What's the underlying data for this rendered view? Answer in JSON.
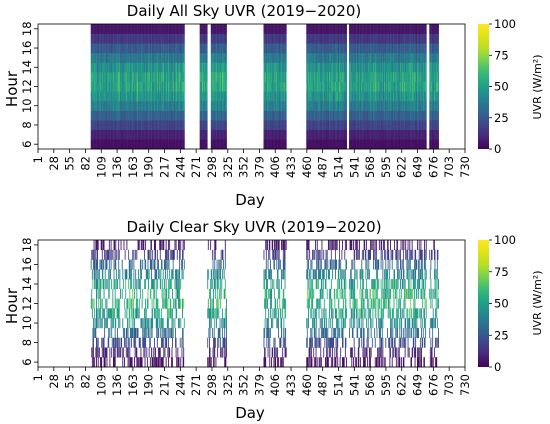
{
  "chart_data": [
    {
      "type": "heatmap",
      "title": "Daily All Sky UVR (2019−2020)",
      "xlabel": "Day",
      "ylabel": "Hour",
      "x_tick_labels": [
        "1",
        "28",
        "55",
        "82",
        "109",
        "136",
        "163",
        "190",
        "217",
        "244",
        "271",
        "298",
        "325",
        "352",
        "379",
        "406",
        "433",
        "460",
        "487",
        "514",
        "541",
        "568",
        "595",
        "622",
        "649",
        "676",
        "703",
        "730"
      ],
      "y_tick_labels": [
        "6",
        "8",
        "10",
        "12",
        "14",
        "16",
        "18"
      ],
      "xlim": [
        1,
        730
      ],
      "hours": [
        6,
        18
      ],
      "colorbar": {
        "label": "UVR (W/m²)",
        "ticks": [
          "0",
          "25",
          "50",
          "75",
          "100"
        ],
        "min": 0,
        "max": 100,
        "colormap": "viridis"
      },
      "data_segments": [
        [
          91,
          250
        ],
        [
          277,
          289
        ],
        [
          296,
          322
        ],
        [
          386,
          424
        ],
        [
          459,
          527
        ],
        [
          532,
          663
        ],
        [
          669,
          684
        ]
      ],
      "hourly_profile": [
        {
          "hour": 6,
          "uvr": 4
        },
        {
          "hour": 7,
          "uvr": 9
        },
        {
          "hour": 8,
          "uvr": 20
        },
        {
          "hour": 9,
          "uvr": 30
        },
        {
          "hour": 10,
          "uvr": 42
        },
        {
          "hour": 11,
          "uvr": 50
        },
        {
          "hour": 12,
          "uvr": 56
        },
        {
          "hour": 13,
          "uvr": 56
        },
        {
          "hour": 14,
          "uvr": 50
        },
        {
          "hour": 15,
          "uvr": 40
        },
        {
          "hour": 16,
          "uvr": 28
        },
        {
          "hour": 17,
          "uvr": 16
        },
        {
          "hour": 18,
          "uvr": 6
        }
      ]
    },
    {
      "type": "heatmap",
      "title": "Daily Clear Sky UVR (2019−2020)",
      "xlabel": "Day",
      "ylabel": "Hour",
      "x_tick_labels": [
        "1",
        "28",
        "55",
        "82",
        "109",
        "136",
        "163",
        "190",
        "217",
        "244",
        "271",
        "298",
        "325",
        "352",
        "379",
        "406",
        "433",
        "460",
        "487",
        "514",
        "541",
        "568",
        "595",
        "622",
        "649",
        "676",
        "703",
        "730"
      ],
      "y_tick_labels": [
        "6",
        "8",
        "10",
        "12",
        "14",
        "16",
        "18"
      ],
      "xlim": [
        1,
        730
      ],
      "hours": [
        6,
        18
      ],
      "colorbar": {
        "label": "UVR (W/m²)",
        "ticks": [
          "0",
          "25",
          "50",
          "75",
          "100"
        ],
        "min": 0,
        "max": 100,
        "colormap": "viridis"
      },
      "data_segments": [
        [
          91,
          250
        ],
        [
          290,
          322
        ],
        [
          386,
          424
        ],
        [
          459,
          527
        ],
        [
          532,
          663
        ],
        [
          669,
          684
        ]
      ],
      "density": 0.35,
      "hourly_profile": [
        {
          "hour": 6,
          "uvr": 4
        },
        {
          "hour": 7,
          "uvr": 10
        },
        {
          "hour": 8,
          "uvr": 22
        },
        {
          "hour": 9,
          "uvr": 33
        },
        {
          "hour": 10,
          "uvr": 46
        },
        {
          "hour": 11,
          "uvr": 55
        },
        {
          "hour": 12,
          "uvr": 60
        },
        {
          "hour": 13,
          "uvr": 60
        },
        {
          "hour": 14,
          "uvr": 54
        },
        {
          "hour": 15,
          "uvr": 43
        },
        {
          "hour": 16,
          "uvr": 31
        },
        {
          "hour": 17,
          "uvr": 18
        },
        {
          "hour": 18,
          "uvr": 7
        }
      ]
    }
  ]
}
